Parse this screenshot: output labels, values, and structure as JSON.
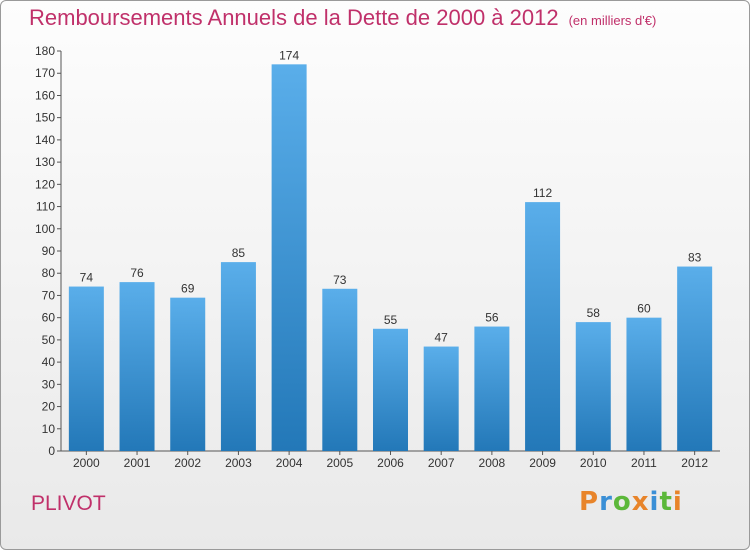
{
  "header": {
    "title": "Remboursements Annuels de la Dette de 2000 à 2012",
    "subtitle": "(en milliers d'€)"
  },
  "footer": {
    "commune": "PLIVOT",
    "logo_text": "Proxiti"
  },
  "colors": {
    "title": "#c0306a",
    "bar_top": "#5aaeea",
    "bar_bottom": "#2378b8",
    "logo_letters": [
      "#e8842a",
      "#3a8fd6",
      "#5cb83a",
      "#e8842a",
      "#3a8fd6",
      "#5cb83a",
      "#e8842a"
    ]
  },
  "chart_data": {
    "type": "bar",
    "title": "Remboursements Annuels de la Dette de 2000 à 2012",
    "subtitle": "(en milliers d'€)",
    "categories": [
      "2000",
      "2001",
      "2002",
      "2003",
      "2004",
      "2005",
      "2006",
      "2007",
      "2008",
      "2009",
      "2010",
      "2011",
      "2012"
    ],
    "values": [
      74,
      76,
      69,
      85,
      174,
      73,
      55,
      47,
      56,
      112,
      58,
      60,
      83
    ],
    "ylim": [
      0,
      180
    ],
    "yticks": [
      0,
      10,
      20,
      30,
      40,
      50,
      60,
      70,
      80,
      90,
      100,
      110,
      120,
      130,
      140,
      150,
      160,
      170,
      180
    ],
    "grid": false,
    "data_labels": true
  }
}
